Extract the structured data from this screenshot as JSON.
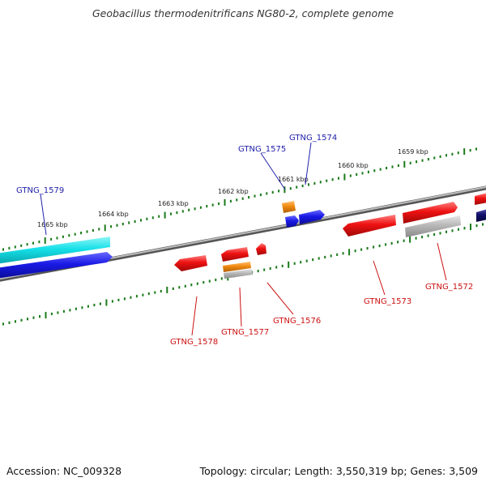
{
  "title": "Geobacillus thermodenitrificans NG80-2, complete genome",
  "footer": {
    "accession": "Accession: NC_009328",
    "summary": "Topology: circular; Length: 3,550,319 bp; Genes: 3,509"
  },
  "colors": {
    "backbone": "#8a8a8a",
    "tick": "#1a7a1a",
    "label_blue": "#2222aa",
    "label_red": "#cc1111",
    "cyan": "#16e0e8",
    "blue": "#1a1ae6",
    "red": "#ee1111",
    "orange": "#f08a10",
    "gray": "#b0b0b0",
    "navy": "#10106a"
  },
  "scale_labels": [
    "1665 kbp",
    "1664 kbp",
    "1663 kbp",
    "1662 kbp",
    "1661 kbp",
    "1660 kbp",
    "1659 kbp"
  ],
  "gene_labels": {
    "top": [
      "GTNG_1579",
      "GTNG_1575",
      "GTNG_1574"
    ],
    "bottom": [
      "GTNG_1578",
      "GTNG_1577",
      "GTNG_1576",
      "GTNG_1573",
      "GTNG_1572"
    ]
  }
}
